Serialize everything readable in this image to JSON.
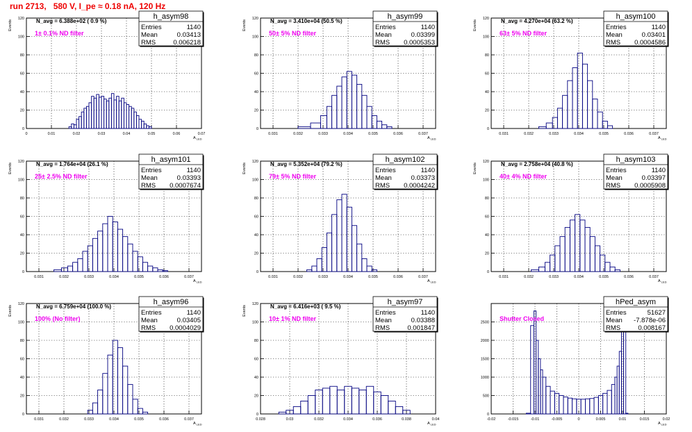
{
  "page": {
    "title": "run 2713,   580 V, I_pe ≈ 0.18 nA, 120 Hz"
  },
  "colors": {
    "hist": "#000080",
    "label": "#ee00ee",
    "title": "#ee0000",
    "grid": "#000000"
  },
  "chart_data": [
    {
      "type": "bar",
      "name": "h_asym98",
      "entries": "1140",
      "mean": "0.03413",
      "rms": "0.006218",
      "navg": "N_avg = 6.388e+02 ( 0.9 %)",
      "label": "1± 0.1% ND filter",
      "ylabel": "Events",
      "xlabel": "A_LED",
      "xlim": [
        0,
        0.07
      ],
      "ylim": [
        0,
        120
      ],
      "xticks": [
        "0",
        "0.01",
        "0.02",
        "0.03",
        "0.04",
        "0.05",
        "0.06",
        "0.07"
      ],
      "yticks": [
        "0",
        "20",
        "40",
        "60",
        "80",
        "100",
        "120"
      ],
      "x": [
        0.0175,
        0.0185,
        0.0195,
        0.0205,
        0.0215,
        0.0225,
        0.0235,
        0.0245,
        0.0255,
        0.0265,
        0.0275,
        0.0285,
        0.0295,
        0.0305,
        0.0315,
        0.0325,
        0.0335,
        0.0345,
        0.0355,
        0.0365,
        0.0375,
        0.0385,
        0.0395,
        0.0405,
        0.0415,
        0.0425,
        0.0435,
        0.0445,
        0.0455,
        0.0465,
        0.0475,
        0.0485,
        0.0495
      ],
      "values": [
        2,
        5,
        4,
        10,
        13,
        18,
        22,
        24,
        28,
        35,
        33,
        37,
        34,
        35,
        32,
        30,
        33,
        38,
        31,
        35,
        30,
        33,
        28,
        26,
        24,
        22,
        18,
        14,
        10,
        8,
        5,
        3,
        2
      ]
    },
    {
      "type": "bar",
      "name": "h_asym99",
      "entries": "1140",
      "mean": "0.03399",
      "rms": "0.0005353",
      "navg": "N_avg = 3.410e+04 (50.5 %)",
      "label": "50± 5% ND filter",
      "ylabel": "Events",
      "xlabel": "A_LED",
      "xlim": [
        0.0305,
        0.0375
      ],
      "ylim": [
        0,
        120
      ],
      "xticks": [
        "0.031",
        "0.032",
        "0.033",
        "0.034",
        "0.035",
        "0.036",
        "0.037"
      ],
      "yticks": [
        "0",
        "20",
        "40",
        "60",
        "80",
        "100",
        "120"
      ],
      "x": [
        0.03225,
        0.03275,
        0.03305,
        0.03325,
        0.03345,
        0.03365,
        0.03385,
        0.03405,
        0.03425,
        0.03445,
        0.03465,
        0.03485,
        0.03505,
        0.03525,
        0.03545,
        0.03565
      ],
      "values": [
        2,
        6,
        14,
        24,
        36,
        46,
        56,
        62,
        58,
        48,
        36,
        24,
        14,
        8,
        4,
        2
      ]
    },
    {
      "type": "bar",
      "name": "h_asym100",
      "entries": "1140",
      "mean": "0.03401",
      "rms": "0.0004586",
      "navg": "N_avg = 4.270e+04 (63.2 %)",
      "label": "63± 5% ND filter",
      "ylabel": "Events",
      "xlabel": "A_LED",
      "xlim": [
        0.0305,
        0.0375
      ],
      "ylim": [
        0,
        120
      ],
      "xticks": [
        "0.031",
        "0.032",
        "0.033",
        "0.034",
        "0.035",
        "0.036",
        "0.037"
      ],
      "yticks": [
        "0",
        "20",
        "40",
        "60",
        "80",
        "100",
        "120"
      ],
      "x": [
        0.03255,
        0.03285,
        0.03305,
        0.03325,
        0.03345,
        0.03365,
        0.03385,
        0.03405,
        0.03425,
        0.03445,
        0.03465,
        0.03485,
        0.03505,
        0.03525
      ],
      "values": [
        2,
        6,
        12,
        22,
        36,
        52,
        66,
        82,
        70,
        52,
        32,
        18,
        8,
        3
      ]
    },
    {
      "type": "bar",
      "name": "h_asym101",
      "entries": "1140",
      "mean": "0.03393",
      "rms": "0.0007674",
      "navg": "N_avg = 1.764e+04 (26.1 %)",
      "label": "25± 2.5% ND filter",
      "ylabel": "Events",
      "xlabel": "A_LED",
      "xlim": [
        0.0305,
        0.0375
      ],
      "ylim": [
        0,
        120
      ],
      "xticks": [
        "0.031",
        "0.032",
        "0.033",
        "0.034",
        "0.035",
        "0.036",
        "0.037"
      ],
      "yticks": [
        "0",
        "20",
        "40",
        "60",
        "80",
        "100",
        "120"
      ],
      "x": [
        0.03175,
        0.03205,
        0.03225,
        0.03245,
        0.03265,
        0.03285,
        0.03305,
        0.03325,
        0.03345,
        0.03365,
        0.03385,
        0.03405,
        0.03425,
        0.03445,
        0.03465,
        0.03485,
        0.03505,
        0.03525,
        0.03545,
        0.03565,
        0.03585,
        0.03605
      ],
      "values": [
        2,
        4,
        6,
        10,
        14,
        22,
        28,
        36,
        44,
        52,
        60,
        54,
        46,
        38,
        30,
        22,
        16,
        10,
        6,
        4,
        2,
        1
      ]
    },
    {
      "type": "bar",
      "name": "h_asym102",
      "entries": "1140",
      "mean": "0.03373",
      "rms": "0.0004242",
      "navg": "N_avg = 5.352e+04 (79.2 %)",
      "label": "79± 5% ND filter",
      "ylabel": "Events",
      "xlabel": "A_LED",
      "xlim": [
        0.0305,
        0.0375
      ],
      "ylim": [
        0,
        120
      ],
      "xticks": [
        "0.031",
        "0.032",
        "0.033",
        "0.034",
        "0.035",
        "0.036",
        "0.037"
      ],
      "yticks": [
        "0",
        "20",
        "40",
        "60",
        "80",
        "100",
        "120"
      ],
      "x": [
        0.03245,
        0.03265,
        0.03285,
        0.03305,
        0.03325,
        0.03345,
        0.03365,
        0.03385,
        0.03405,
        0.03425,
        0.03445,
        0.03465,
        0.03485,
        0.03505
      ],
      "values": [
        2,
        6,
        14,
        26,
        42,
        62,
        78,
        84,
        70,
        50,
        30,
        14,
        6,
        2
      ]
    },
    {
      "type": "bar",
      "name": "h_asym103",
      "entries": "1140",
      "mean": "0.03397",
      "rms": "0.0005908",
      "navg": "N_avg = 2.758e+04 (40.8 %)",
      "label": "40± 4% ND filter",
      "ylabel": "Events",
      "xlabel": "A_LED",
      "xlim": [
        0.0305,
        0.0375
      ],
      "ylim": [
        0,
        120
      ],
      "xticks": [
        "0.031",
        "0.032",
        "0.033",
        "0.034",
        "0.035",
        "0.036",
        "0.037"
      ],
      "yticks": [
        "0",
        "20",
        "40",
        "60",
        "80",
        "100",
        "120"
      ],
      "x": [
        0.03225,
        0.03255,
        0.03275,
        0.03295,
        0.03315,
        0.03335,
        0.03355,
        0.03375,
        0.03395,
        0.03415,
        0.03435,
        0.03455,
        0.03475,
        0.03495,
        0.03515,
        0.03535,
        0.03555
      ],
      "values": [
        2,
        5,
        10,
        18,
        28,
        38,
        48,
        56,
        62,
        56,
        48,
        38,
        28,
        18,
        10,
        5,
        2
      ]
    },
    {
      "type": "bar",
      "name": "h_asym96",
      "entries": "1140",
      "mean": "0.03405",
      "rms": "0.0004029",
      "navg": "N_avg = 6.759e+04 (100.0 %)",
      "label": "100% (No filter)",
      "ylabel": "Events",
      "xlabel": "A_LED",
      "xlim": [
        0.0305,
        0.0375
      ],
      "ylim": [
        0,
        120
      ],
      "xticks": [
        "0.031",
        "0.032",
        "0.033",
        "0.034",
        "0.035",
        "0.036",
        "0.037"
      ],
      "yticks": [
        "0",
        "20",
        "40",
        "60",
        "80",
        "100",
        "120"
      ],
      "x": [
        0.03305,
        0.03325,
        0.03345,
        0.03365,
        0.03385,
        0.03405,
        0.03425,
        0.03445,
        0.03465,
        0.03485,
        0.03505,
        0.03525
      ],
      "values": [
        4,
        12,
        26,
        44,
        64,
        80,
        72,
        52,
        32,
        16,
        6,
        2
      ]
    },
    {
      "type": "bar",
      "name": "h_asym97",
      "entries": "1140",
      "mean": "0.03388",
      "rms": "0.001847",
      "navg": "N_avg = 6.416e+03 ( 9.5 %)",
      "label": "10± 1% ND filter",
      "ylabel": "Events",
      "xlabel": "A_LED",
      "xlim": [
        0.028,
        0.04
      ],
      "ylim": [
        0,
        120
      ],
      "xticks": [
        "0.028",
        "0.03",
        "0.032",
        "0.034",
        "0.036",
        "0.038",
        "0.04"
      ],
      "yticks": [
        "0",
        "20",
        "40",
        "60",
        "80",
        "100",
        "120"
      ],
      "x": [
        0.0295,
        0.03,
        0.0305,
        0.031,
        0.0315,
        0.032,
        0.0325,
        0.033,
        0.0335,
        0.034,
        0.0345,
        0.035,
        0.0355,
        0.036,
        0.0365,
        0.037,
        0.0375,
        0.038
      ],
      "values": [
        2,
        4,
        8,
        14,
        20,
        26,
        28,
        30,
        26,
        30,
        28,
        26,
        30,
        24,
        20,
        14,
        8,
        4
      ]
    },
    {
      "type": "bar",
      "name": "hPed_asym",
      "entries": "51627",
      "mean": "-7.878e-06",
      "rms": "0.008167",
      "navg": "",
      "label": "Shutter Closed",
      "ylabel": "",
      "xlabel": "A_LED",
      "xlim": [
        -0.02,
        0.02
      ],
      "ylim": [
        0,
        3000
      ],
      "xticks": [
        "-0.02",
        "-0.015",
        "-0.01",
        "-0.005",
        "0",
        "0.005",
        "0.01",
        "0.015",
        "0.02"
      ],
      "yticks": [
        "0",
        "500",
        "1000",
        "1500",
        "2000",
        "2500"
      ],
      "x": [
        -0.0115,
        -0.0105,
        -0.01,
        -0.0095,
        -0.009,
        -0.0085,
        -0.008,
        -0.007,
        -0.006,
        -0.005,
        -0.004,
        -0.003,
        -0.002,
        -0.001,
        0.0,
        0.001,
        0.002,
        0.003,
        0.004,
        0.005,
        0.006,
        0.007,
        0.008,
        0.0085,
        0.009,
        0.0095,
        0.01,
        0.0105,
        0.011
      ],
      "values": [
        20,
        2400,
        2800,
        2000,
        1500,
        1200,
        1000,
        750,
        620,
        560,
        500,
        460,
        430,
        410,
        400,
        400,
        410,
        420,
        450,
        500,
        560,
        640,
        800,
        1000,
        1300,
        1700,
        2600,
        2300,
        20
      ]
    }
  ]
}
